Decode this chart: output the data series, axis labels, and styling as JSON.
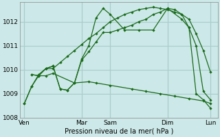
{
  "title": "",
  "xlabel": "Pression niveau de la mer( hPa )",
  "bg_color": "#cce8e8",
  "grid_color": "#aacccc",
  "line_color": "#1a6b1a",
  "ylim": [
    1008.0,
    1012.8
  ],
  "yticks": [
    1008,
    1009,
    1010,
    1011,
    1012
  ],
  "xtick_labels": [
    "Ven",
    "Mar",
    "Sam",
    "Dim",
    "Lun"
  ],
  "xtick_positions": [
    0,
    4,
    6,
    10,
    13
  ],
  "vline_positions": [
    0,
    4,
    6,
    10,
    13
  ],
  "series": [
    {
      "x": [
        0.0,
        0.5,
        1.0,
        1.5,
        2.0,
        2.5,
        3.0,
        3.5,
        4.0,
        4.5,
        5.0,
        5.5,
        6.0,
        6.5,
        7.0,
        7.5,
        8.0,
        8.5,
        9.0,
        9.5,
        10.0,
        10.5,
        11.0,
        11.5,
        12.0,
        12.5,
        13.0
      ],
      "y": [
        1008.6,
        1009.3,
        1009.8,
        1010.05,
        1010.05,
        1010.3,
        1010.55,
        1010.8,
        1011.05,
        1011.3,
        1011.5,
        1011.75,
        1012.0,
        1012.15,
        1012.3,
        1012.4,
        1012.5,
        1012.55,
        1012.6,
        1012.55,
        1012.5,
        1012.4,
        1012.3,
        1012.1,
        1011.5,
        1010.8,
        1009.9
      ]
    },
    {
      "x": [
        0.5,
        1.0,
        1.5,
        2.0,
        2.5,
        3.0,
        3.5,
        4.0,
        4.5,
        5.0,
        5.5,
        6.0,
        6.5,
        7.0,
        7.5,
        8.0,
        8.5,
        9.0,
        9.5,
        10.0,
        10.5,
        11.0,
        11.5,
        12.0,
        12.5,
        13.0
      ],
      "y": [
        1009.8,
        1009.75,
        1010.05,
        1010.15,
        1009.2,
        1009.15,
        1009.45,
        1010.4,
        1010.75,
        1011.15,
        1011.55,
        1011.55,
        1011.65,
        1011.75,
        1011.85,
        1012.0,
        1012.1,
        1012.3,
        1012.4,
        1012.55,
        1012.5,
        1012.3,
        1011.75,
        1011.0,
        1009.1,
        1008.75
      ]
    },
    {
      "x": [
        0.5,
        1.0,
        1.5,
        2.0,
        2.5,
        3.0,
        3.5,
        4.0,
        4.5,
        5.0,
        5.5,
        6.0,
        7.0,
        8.0,
        9.0,
        10.0,
        11.0,
        11.5,
        12.0,
        12.5,
        13.0
      ],
      "y": [
        1009.8,
        1009.75,
        1010.05,
        1010.15,
        1009.2,
        1009.15,
        1009.45,
        1010.45,
        1011.0,
        1012.15,
        1012.55,
        1012.3,
        1011.65,
        1011.65,
        1011.65,
        1012.55,
        1012.1,
        1011.75,
        1009.0,
        1008.75,
        1008.4
      ]
    },
    {
      "x": [
        0.0,
        0.5,
        1.0,
        1.5,
        2.0,
        3.5,
        4.5,
        5.0,
        6.0,
        7.5,
        8.5,
        9.5,
        10.5,
        11.5,
        12.5,
        13.0
      ],
      "y": [
        1008.6,
        1009.3,
        1009.75,
        1009.75,
        1009.85,
        1009.45,
        1009.5,
        1009.45,
        1009.35,
        1009.2,
        1009.1,
        1009.0,
        1008.9,
        1008.8,
        1008.7,
        1008.6
      ]
    }
  ]
}
